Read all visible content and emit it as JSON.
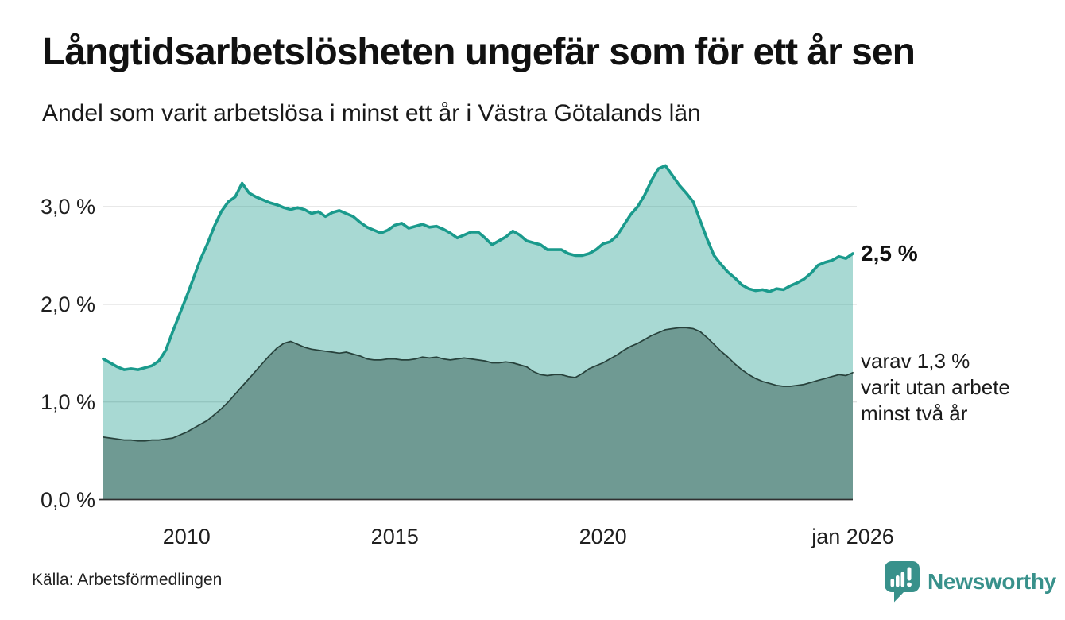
{
  "header": {
    "title": "Långtidsarbetslösheten ungefär som för ett år sen",
    "subtitle": "Andel som varit arbetslösa i minst ett år i Västra Götalands län"
  },
  "chart_data": {
    "type": "area",
    "title": "Långtidsarbetslösheten ungefär som för ett år sen",
    "subtitle": "Andel som varit arbetslösa i minst ett år i Västra Götalands län",
    "unit": "%",
    "x_domain": [
      2008.0,
      2026.0
    ],
    "x_resolution_months": 2,
    "ylim": [
      0,
      3.55
    ],
    "grid": "horizontal-only",
    "legend_position": "none",
    "x_ticks": [
      {
        "value": 2010,
        "label": "2010"
      },
      {
        "value": 2015,
        "label": "2015"
      },
      {
        "value": 2020,
        "label": "2020"
      },
      {
        "value": 2026,
        "label": "jan 2026"
      }
    ],
    "y_ticks": [
      {
        "value": 0,
        "label": "0,0 %"
      },
      {
        "value": 1,
        "label": "1,0 %"
      },
      {
        "value": 2,
        "label": "2,0 %"
      },
      {
        "value": 3,
        "label": "3,0 %"
      }
    ],
    "gridline_color": "#e0e0e0",
    "axis_color": "#2f2f2f",
    "series": [
      {
        "name": "Andel arbetslösa minst ett år (totalt)",
        "color": "#1a9a8c",
        "fill": "rgba(26,154,140,0.38)",
        "line_width": 3.6,
        "end_value_label": "2,5 %",
        "values": [
          1.44,
          1.4,
          1.36,
          1.33,
          1.34,
          1.33,
          1.35,
          1.37,
          1.42,
          1.53,
          1.72,
          1.9,
          2.08,
          2.27,
          2.46,
          2.62,
          2.8,
          2.95,
          3.05,
          3.1,
          3.24,
          3.14,
          3.1,
          3.07,
          3.04,
          3.02,
          2.99,
          2.97,
          2.99,
          2.97,
          2.93,
          2.95,
          2.9,
          2.94,
          2.96,
          2.93,
          2.9,
          2.84,
          2.79,
          2.76,
          2.73,
          2.76,
          2.81,
          2.83,
          2.78,
          2.8,
          2.82,
          2.79,
          2.8,
          2.77,
          2.73,
          2.68,
          2.71,
          2.74,
          2.74,
          2.68,
          2.61,
          2.65,
          2.69,
          2.75,
          2.71,
          2.65,
          2.63,
          2.61,
          2.56,
          2.56,
          2.56,
          2.52,
          2.5,
          2.5,
          2.52,
          2.56,
          2.62,
          2.64,
          2.7,
          2.81,
          2.92,
          3.0,
          3.12,
          3.27,
          3.39,
          3.42,
          3.32,
          3.22,
          3.14,
          3.05,
          2.86,
          2.67,
          2.5,
          2.41,
          2.33,
          2.27,
          2.2,
          2.16,
          2.14,
          2.15,
          2.13,
          2.16,
          2.15,
          2.19,
          2.22,
          2.26,
          2.32,
          2.4,
          2.43,
          2.45,
          2.49,
          2.47,
          2.52
        ]
      },
      {
        "name": "varav arbetslösa minst två år",
        "color": "#27413b",
        "fill": "#6f9a93",
        "line_width": 1.7,
        "end_value_label": "1,3 %",
        "values": [
          0.64,
          0.63,
          0.62,
          0.61,
          0.61,
          0.6,
          0.6,
          0.61,
          0.61,
          0.62,
          0.63,
          0.66,
          0.69,
          0.73,
          0.77,
          0.81,
          0.87,
          0.93,
          1.0,
          1.08,
          1.16,
          1.24,
          1.32,
          1.4,
          1.48,
          1.55,
          1.6,
          1.62,
          1.59,
          1.56,
          1.54,
          1.53,
          1.52,
          1.51,
          1.5,
          1.51,
          1.49,
          1.47,
          1.44,
          1.43,
          1.43,
          1.44,
          1.44,
          1.43,
          1.43,
          1.44,
          1.46,
          1.45,
          1.46,
          1.44,
          1.43,
          1.44,
          1.45,
          1.44,
          1.43,
          1.42,
          1.4,
          1.4,
          1.41,
          1.4,
          1.38,
          1.36,
          1.31,
          1.28,
          1.27,
          1.28,
          1.28,
          1.26,
          1.25,
          1.29,
          1.34,
          1.37,
          1.4,
          1.44,
          1.48,
          1.53,
          1.57,
          1.6,
          1.64,
          1.68,
          1.71,
          1.74,
          1.75,
          1.76,
          1.76,
          1.75,
          1.72,
          1.66,
          1.59,
          1.52,
          1.46,
          1.39,
          1.33,
          1.28,
          1.24,
          1.21,
          1.19,
          1.17,
          1.16,
          1.16,
          1.17,
          1.18,
          1.2,
          1.22,
          1.24,
          1.26,
          1.28,
          1.27,
          1.3
        ]
      }
    ],
    "annotations": {
      "end_total": "2,5 %",
      "end_sub_lines": [
        "varav 1,3 %",
        "varit utan arbete",
        "minst två år"
      ]
    }
  },
  "footer": {
    "source": "Källa: Arbetsförmedlingen",
    "brand_name": "Newsworthy",
    "brand_color": "#38918b"
  }
}
